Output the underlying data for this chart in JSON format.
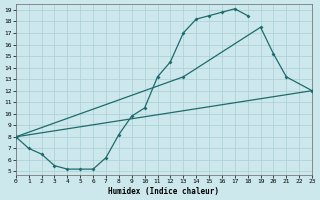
{
  "xlabel": "Humidex (Indice chaleur)",
  "bg_color": "#cce8ec",
  "grid_color": "#aacdd4",
  "line_color": "#1e6b6b",
  "xlim": [
    0,
    23
  ],
  "ylim": [
    5,
    19
  ],
  "xticks": [
    0,
    1,
    2,
    3,
    4,
    5,
    6,
    7,
    8,
    9,
    10,
    11,
    12,
    13,
    14,
    15,
    16,
    17,
    18,
    19,
    20,
    21,
    22,
    23
  ],
  "yticks": [
    5,
    6,
    7,
    8,
    9,
    10,
    11,
    12,
    13,
    14,
    15,
    16,
    17,
    18,
    19
  ],
  "line1_x": [
    0,
    1,
    2,
    3,
    4,
    5,
    6,
    7,
    8,
    9,
    10,
    11,
    12,
    13,
    14,
    15,
    16,
    17,
    18
  ],
  "line1_y": [
    8.0,
    7.0,
    6.5,
    5.5,
    5.2,
    5.2,
    5.2,
    6.2,
    8.2,
    9.8,
    10.5,
    13.2,
    14.5,
    17.0,
    18.2,
    18.5,
    18.8,
    19.1,
    18.5
  ],
  "line2_x": [
    0,
    13,
    19,
    20,
    21,
    23
  ],
  "line2_y": [
    8.0,
    13.2,
    17.5,
    15.2,
    13.2,
    12.0
  ],
  "line3_x": [
    0,
    23
  ],
  "line3_y": [
    8.0,
    12.0
  ]
}
